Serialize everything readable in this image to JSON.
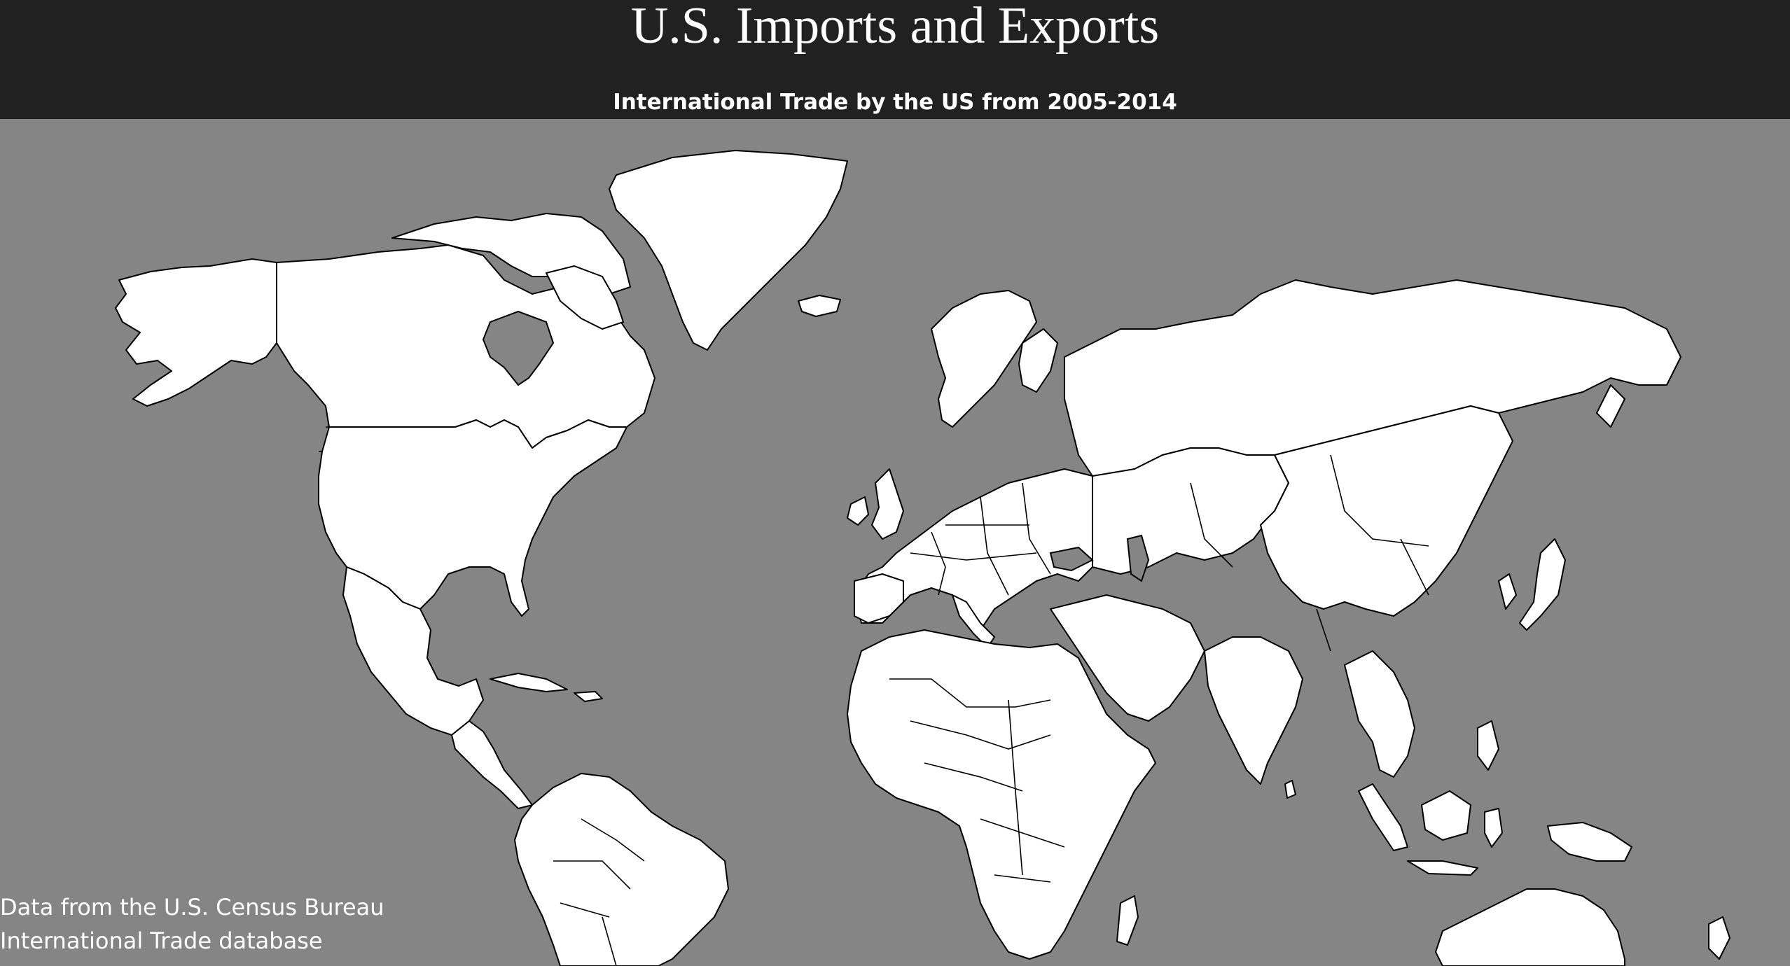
{
  "header": {
    "title": "U.S. Imports and Exports",
    "subtitle": "International Trade by the US from 2005-2014"
  },
  "footer": {
    "credit": "Data from the U.S. Census Bureau International Trade database"
  },
  "colors": {
    "header_background": "#212121",
    "ocean": "#858585",
    "land": "#ffffff",
    "borders": "#000000",
    "text": "#ffffff"
  },
  "map": {
    "projection": "equirectangular-like world map",
    "regions": [
      "North America",
      "Greenland",
      "South America",
      "Europe",
      "Africa",
      "Asia",
      "Australia",
      "New Zealand",
      "Madagascar",
      "Japan",
      "Indonesia",
      "Philippines",
      "United Kingdom",
      "Iceland"
    ]
  }
}
